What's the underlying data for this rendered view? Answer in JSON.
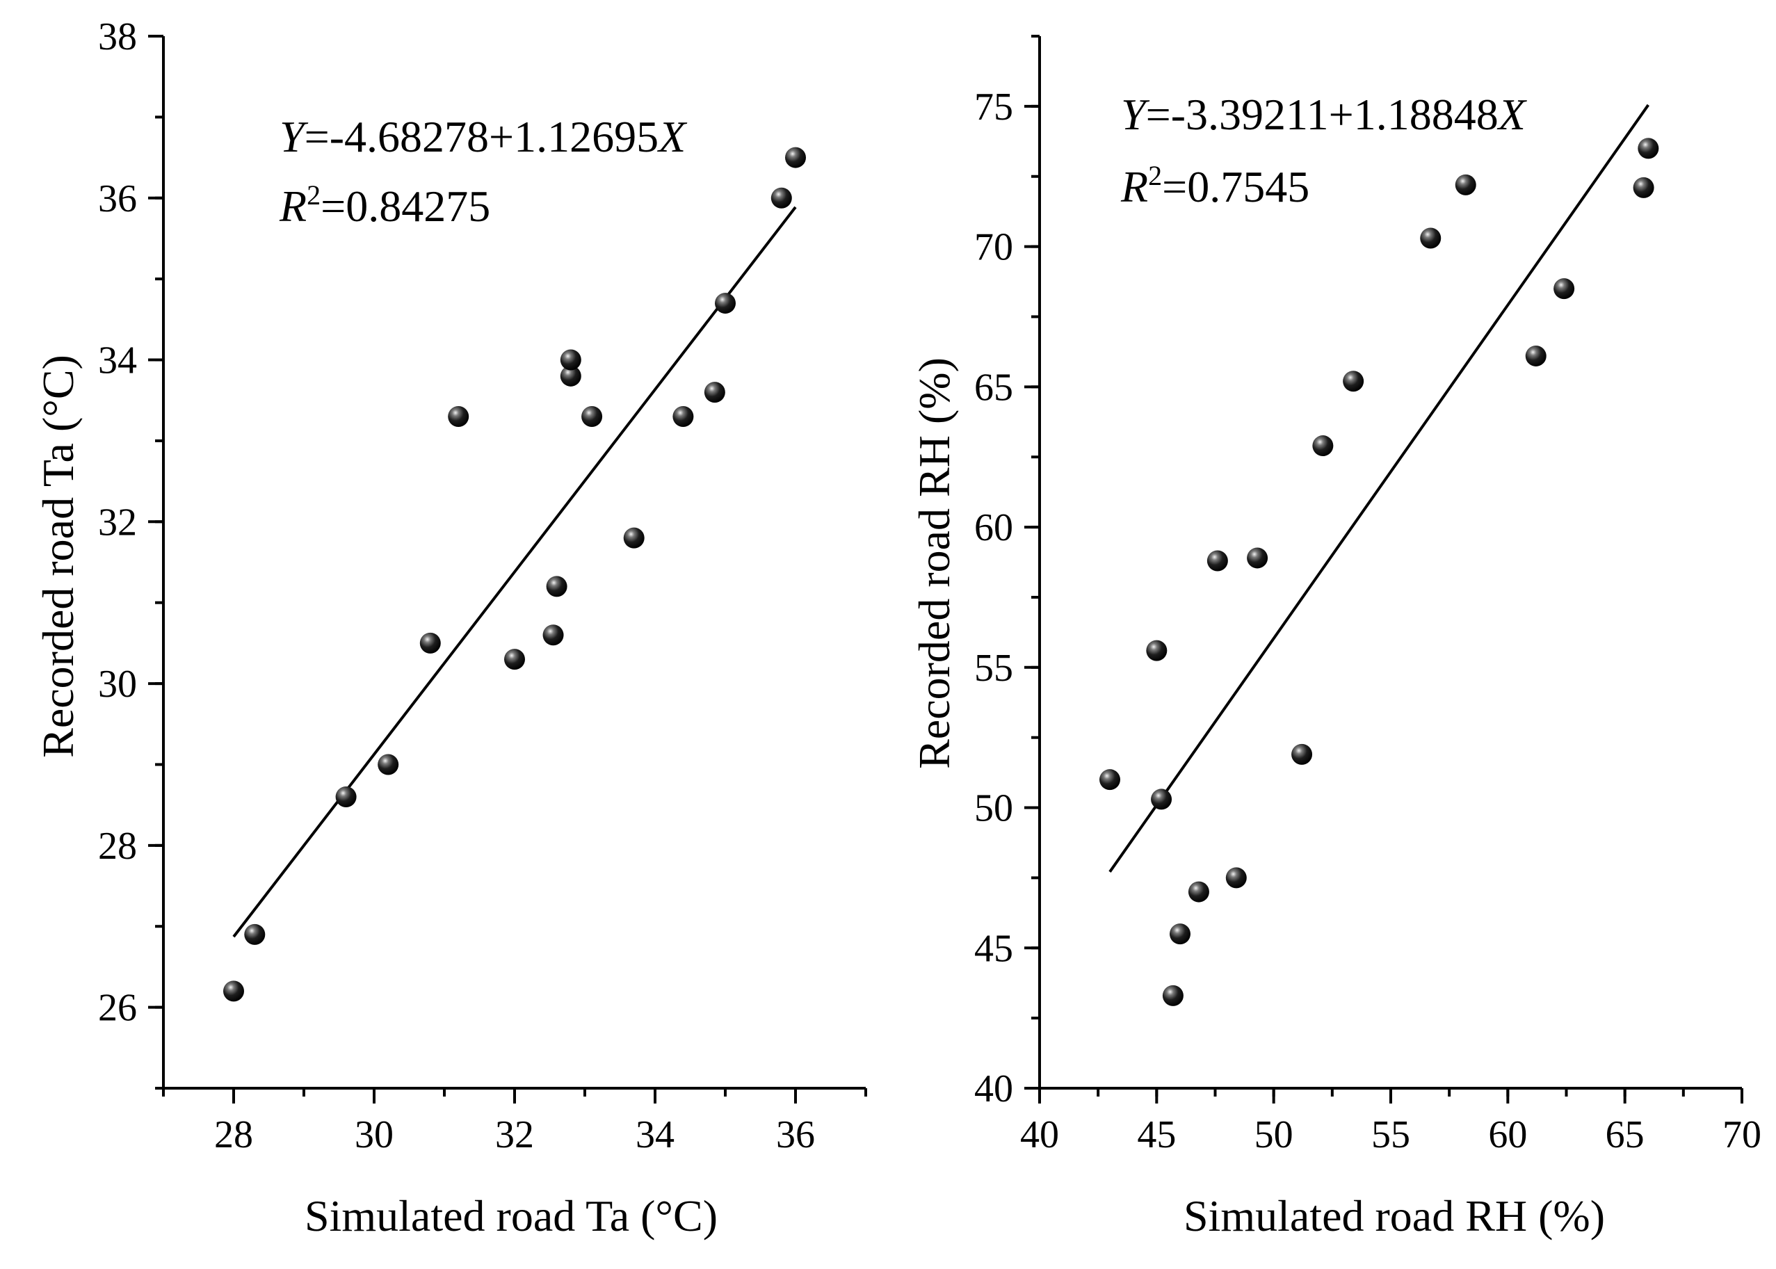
{
  "chart_data": [
    {
      "type": "scatter",
      "xlabel": "Simulated road Ta (°C)",
      "ylabel": "Recorded road Ta (°C)",
      "xlim": [
        27,
        37
      ],
      "ylim": [
        25,
        38
      ],
      "xticks": [
        28,
        30,
        32,
        34,
        36
      ],
      "yticks": [
        26,
        28,
        30,
        32,
        34,
        36,
        38
      ],
      "xminor_step": 1,
      "yminor_step": 1,
      "fit": {
        "intercept": -4.68278,
        "slope": 1.12695,
        "x_range": [
          28,
          36
        ]
      },
      "equation": {
        "y_var": "Y",
        "eq_body": "=-4.68278+1.12695",
        "x_var": "X",
        "r_var": "R",
        "r_sup": "2",
        "r_value": "=0.84275"
      },
      "points": [
        {
          "x": 28.0,
          "y": 26.2
        },
        {
          "x": 28.3,
          "y": 26.9
        },
        {
          "x": 29.6,
          "y": 28.6
        },
        {
          "x": 30.2,
          "y": 29.0
        },
        {
          "x": 30.8,
          "y": 30.5
        },
        {
          "x": 31.2,
          "y": 33.3
        },
        {
          "x": 32.0,
          "y": 30.3
        },
        {
          "x": 32.55,
          "y": 30.6
        },
        {
          "x": 32.6,
          "y": 31.2
        },
        {
          "x": 32.8,
          "y": 33.8
        },
        {
          "x": 32.8,
          "y": 34.0
        },
        {
          "x": 33.1,
          "y": 33.3
        },
        {
          "x": 33.7,
          "y": 31.8
        },
        {
          "x": 34.4,
          "y": 33.3
        },
        {
          "x": 34.85,
          "y": 33.6
        },
        {
          "x": 35.0,
          "y": 34.7
        },
        {
          "x": 35.8,
          "y": 36.0
        },
        {
          "x": 36.0,
          "y": 36.5
        }
      ]
    },
    {
      "type": "scatter",
      "xlabel": "Simulated road RH (%)",
      "ylabel": "Recorded road RH (%)",
      "xlim": [
        40,
        70
      ],
      "ylim": [
        40,
        77.5
      ],
      "xticks": [
        40,
        45,
        50,
        55,
        60,
        65,
        70
      ],
      "yticks": [
        40,
        45,
        50,
        55,
        60,
        65,
        70,
        75
      ],
      "xminor_step": 2.5,
      "yminor_step": 2.5,
      "fit": {
        "intercept": -3.39211,
        "slope": 1.18848,
        "x_range": [
          43,
          66
        ]
      },
      "equation": {
        "y_var": "Y",
        "eq_body": "=-3.39211+1.18848",
        "x_var": "X",
        "r_var": "R",
        "r_sup": "2",
        "r_value": "=0.7545"
      },
      "points": [
        {
          "x": 43.0,
          "y": 51.0
        },
        {
          "x": 45.0,
          "y": 55.6
        },
        {
          "x": 45.2,
          "y": 50.3
        },
        {
          "x": 45.7,
          "y": 43.3
        },
        {
          "x": 46.0,
          "y": 45.5
        },
        {
          "x": 46.8,
          "y": 47.0
        },
        {
          "x": 47.6,
          "y": 58.8
        },
        {
          "x": 48.4,
          "y": 47.5
        },
        {
          "x": 49.3,
          "y": 58.9
        },
        {
          "x": 51.2,
          "y": 51.9
        },
        {
          "x": 52.1,
          "y": 62.9
        },
        {
          "x": 53.4,
          "y": 65.2
        },
        {
          "x": 56.7,
          "y": 70.3
        },
        {
          "x": 58.2,
          "y": 72.2
        },
        {
          "x": 61.2,
          "y": 66.1
        },
        {
          "x": 62.4,
          "y": 68.5
        },
        {
          "x": 65.8,
          "y": 72.1
        },
        {
          "x": 66.0,
          "y": 73.5
        }
      ]
    }
  ]
}
